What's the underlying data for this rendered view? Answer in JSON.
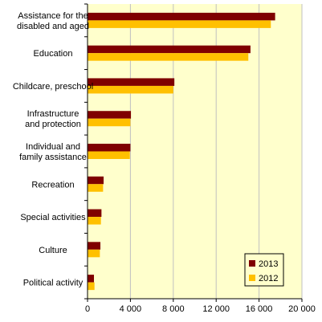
{
  "chart_data": {
    "type": "bar",
    "orientation": "horizontal",
    "title": "",
    "xlabel": "",
    "ylabel": "",
    "categories": [
      [
        "Assistance for the",
        "disabled and aged"
      ],
      [
        "Education"
      ],
      [
        "Childcare, preschool"
      ],
      [
        "Infrastructure",
        "and protection"
      ],
      [
        "Individual and",
        "family assistance"
      ],
      [
        "Recreation"
      ],
      [
        "Special activities"
      ],
      [
        "Culture"
      ],
      [
        "Political activity"
      ]
    ],
    "series": [
      {
        "name": "2013",
        "color": "#7f0000",
        "values": [
          17500,
          15200,
          8100,
          4050,
          4000,
          1500,
          1300,
          1200,
          600
        ]
      },
      {
        "name": "2012",
        "color": "#ffc000",
        "values": [
          17100,
          15000,
          8000,
          4000,
          3950,
          1450,
          1250,
          1150,
          650
        ]
      }
    ],
    "xlim": [
      0,
      20000
    ],
    "xticks": [
      0,
      4000,
      8000,
      12000,
      16000,
      20000
    ],
    "xtick_labels": [
      "0",
      "4 000",
      "8 000",
      "12 000",
      "16 000",
      "20 000"
    ],
    "grid": true,
    "plot_background": "#ffffcc",
    "grid_color": "#c0c0c0",
    "legend_position": "bottom-right"
  }
}
